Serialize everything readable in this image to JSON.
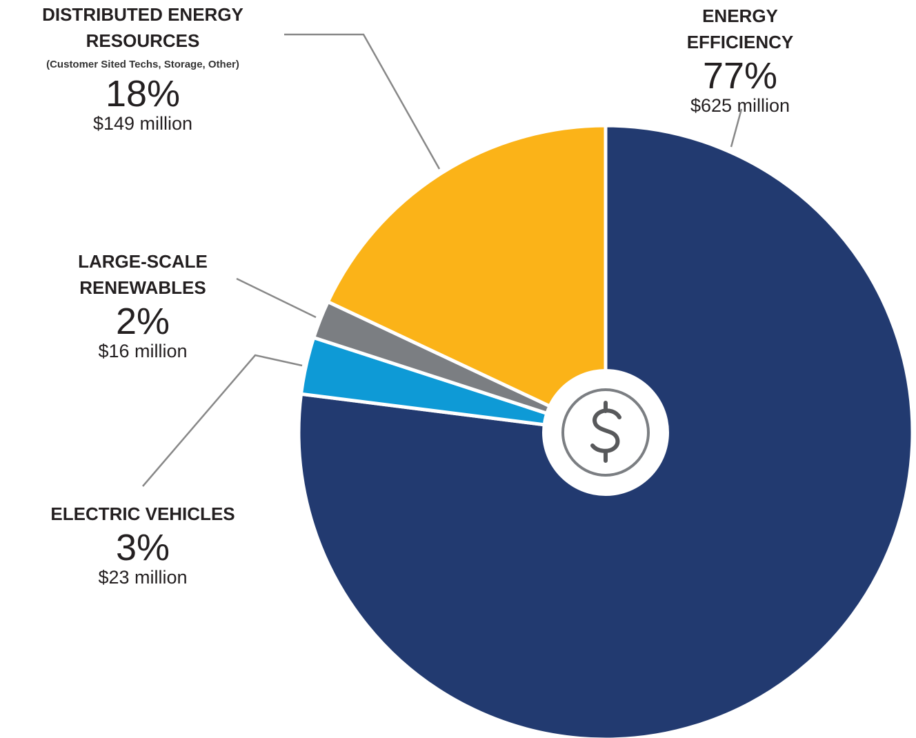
{
  "chart_data": {
    "type": "pie",
    "categories": [
      "ENERGY EFFICIENCY",
      "ELECTRIC VEHICLES",
      "LARGE-SCALE RENEWABLES",
      "DISTRIBUTED ENERGY RESOURCES"
    ],
    "values": [
      77,
      3,
      2,
      18
    ],
    "value_labels": [
      "77%",
      "3%",
      "2%",
      "18%"
    ],
    "amount_labels": [
      "$625 million",
      "$23 million",
      "$16 million",
      "$149 million"
    ],
    "annotation": "(Customer Sited Techs, Storage, Other)",
    "colors": [
      "#223a70",
      "#0e9ad6",
      "#7b7e82",
      "#fbb318"
    ]
  }
}
